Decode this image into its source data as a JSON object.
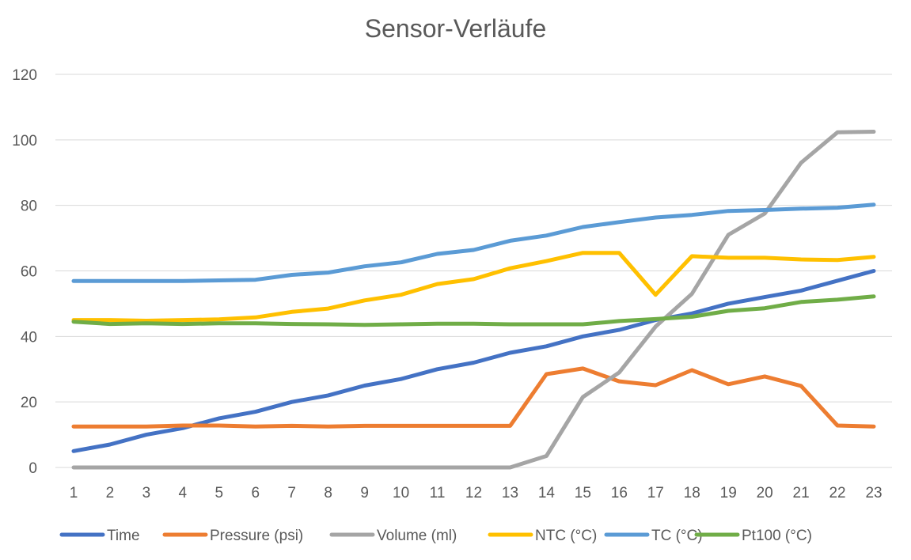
{
  "chart_data": {
    "type": "line",
    "title": "Sensor-Verläufe",
    "xlabel": "",
    "ylabel": "",
    "ylim": [
      0,
      120
    ],
    "yticks": [
      0,
      20,
      40,
      60,
      80,
      100,
      120
    ],
    "grid": true,
    "legend_position": "bottom",
    "categories": [
      "1",
      "2",
      "3",
      "4",
      "5",
      "6",
      "7",
      "8",
      "9",
      "10",
      "11",
      "12",
      "13",
      "14",
      "15",
      "16",
      "17",
      "18",
      "19",
      "20",
      "21",
      "22",
      "23"
    ],
    "series": [
      {
        "name": "Time",
        "color": "#4472C4",
        "values": [
          5,
          7,
          10,
          12,
          15,
          17,
          20,
          22,
          25,
          27,
          30,
          32,
          35,
          37,
          40,
          42,
          45,
          47,
          50,
          52,
          54,
          57,
          60
        ]
      },
      {
        "name": "Pressure (psi)",
        "color": "#ED7D31",
        "values": [
          12.5,
          12.5,
          12.5,
          12.8,
          12.8,
          12.5,
          12.7,
          12.5,
          12.7,
          12.7,
          12.7,
          12.7,
          12.7,
          28.5,
          30.2,
          26.3,
          25.1,
          29.7,
          25.4,
          27.8,
          24.9,
          12.8,
          12.5
        ]
      },
      {
        "name": "Volume (ml)",
        "color": "#A5A5A5",
        "values": [
          0,
          0,
          0,
          0,
          0,
          0,
          0,
          0,
          0,
          0,
          0,
          0,
          0,
          3.5,
          21.5,
          29,
          43,
          53,
          71,
          77.5,
          93,
          102.3,
          102.5
        ]
      },
      {
        "name": "NTC (°C)",
        "color": "#FFC000",
        "values": [
          45,
          45,
          44.8,
          45,
          45.2,
          45.8,
          47.5,
          48.5,
          51,
          52.7,
          56,
          57.5,
          60.8,
          63,
          65.5,
          65.5,
          52.7,
          64.5,
          64,
          64,
          63.5,
          63.3,
          64.3
        ]
      },
      {
        "name": "TC (°C)",
        "color": "#5B9BD5",
        "values": [
          56.9,
          56.9,
          56.9,
          56.9,
          57.1,
          57.3,
          58.8,
          59.5,
          61.4,
          62.6,
          65.2,
          66.4,
          69.2,
          70.8,
          73.4,
          74.9,
          76.3,
          77.1,
          78.3,
          78.6,
          79,
          79.3,
          80.2
        ]
      },
      {
        "name": "Pt100 (°C)",
        "color": "#70AD47",
        "values": [
          44.5,
          43.8,
          44,
          43.8,
          44,
          44,
          43.8,
          43.7,
          43.5,
          43.7,
          43.9,
          43.9,
          43.7,
          43.7,
          43.7,
          44.7,
          45.3,
          46,
          47.8,
          48.6,
          50.5,
          51.2,
          52.2
        ]
      }
    ]
  }
}
